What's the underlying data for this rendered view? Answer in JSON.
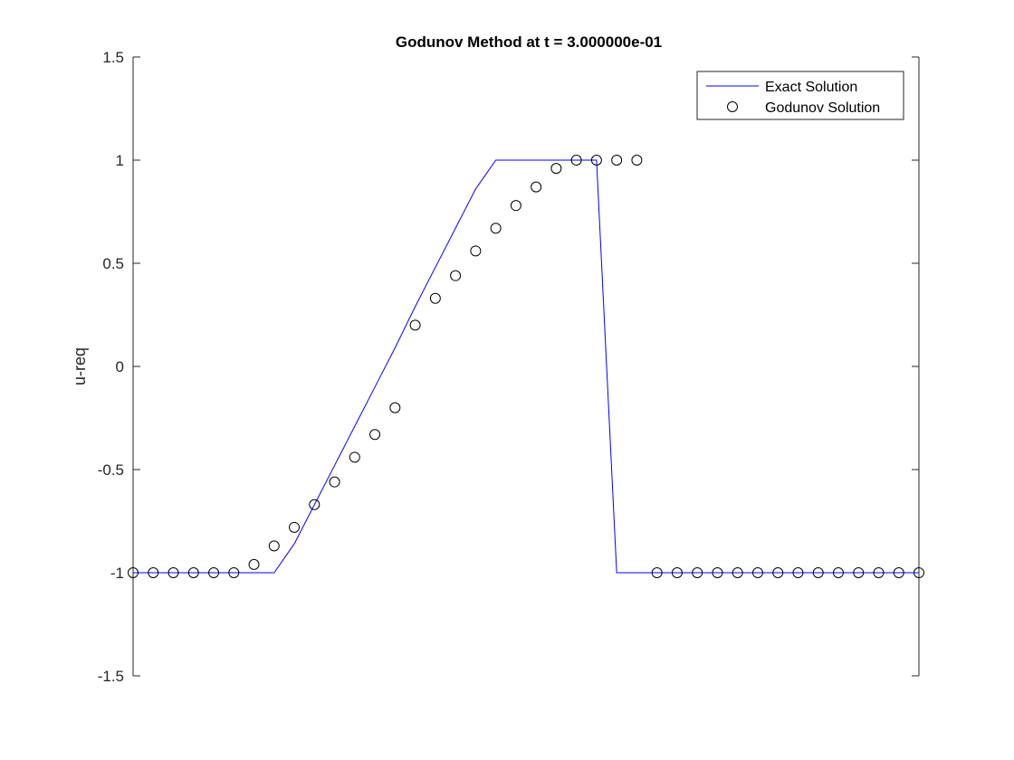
{
  "chart_data": {
    "type": "line",
    "title": "Godunov Method at t = 3.000000e-01",
    "xlabel": "",
    "ylabel": "u-req",
    "xlim": [
      0,
      39
    ],
    "ylim": [
      -1.5,
      1.5
    ],
    "yticks": [
      -1.5,
      -1,
      -0.5,
      0,
      0.5,
      1,
      1.5
    ],
    "ytick_labels": [
      "-1.5",
      "-1",
      "-0.5",
      "0",
      "0.5",
      "1",
      "1.5"
    ],
    "grid": false,
    "legend_position": "top-right",
    "series": [
      {
        "name": "Exact Solution",
        "style": "line",
        "color": "#0000ff",
        "x": [
          0,
          1,
          2,
          3,
          4,
          5,
          6,
          7,
          8,
          9,
          10,
          11,
          12,
          13,
          14,
          15,
          16,
          17,
          18,
          19,
          20,
          21,
          22,
          23,
          24,
          25,
          26,
          27,
          28,
          29,
          30,
          31,
          32,
          33,
          34,
          35,
          36,
          37,
          38,
          39
        ],
        "y": [
          -1,
          -1,
          -1,
          -1,
          -1,
          -1,
          -1,
          -1,
          -0.86,
          -0.67,
          -0.48,
          -0.29,
          -0.1,
          0.09,
          0.29,
          0.48,
          0.67,
          0.86,
          1,
          1,
          1,
          1,
          1,
          1,
          -1,
          -1,
          -1,
          -1,
          -1,
          -1,
          -1,
          -1,
          -1,
          -1,
          -1,
          -1,
          -1,
          -1,
          -1,
          -1
        ]
      },
      {
        "name": "Godunov Solution",
        "style": "markers",
        "marker": "circle",
        "color": "#000000",
        "x": [
          0,
          1,
          2,
          3,
          4,
          5,
          6,
          7,
          8,
          9,
          10,
          11,
          12,
          13,
          14,
          15,
          16,
          17,
          18,
          19,
          20,
          21,
          22,
          23,
          24,
          25,
          26,
          27,
          28,
          29,
          30,
          31,
          32,
          33,
          34,
          35,
          36,
          37,
          38,
          39
        ],
        "y": [
          -1,
          -1,
          -1,
          -1,
          -1,
          -1,
          -0.96,
          -0.87,
          -0.78,
          -0.67,
          -0.56,
          -0.44,
          -0.33,
          -0.2,
          0.2,
          0.33,
          0.44,
          0.56,
          0.67,
          0.78,
          0.87,
          0.96,
          1,
          1,
          1,
          1,
          -1,
          -1,
          -1,
          -1,
          -1,
          -1,
          -1,
          -1,
          -1,
          -1,
          -1,
          -1,
          -1,
          -1
        ]
      }
    ]
  }
}
